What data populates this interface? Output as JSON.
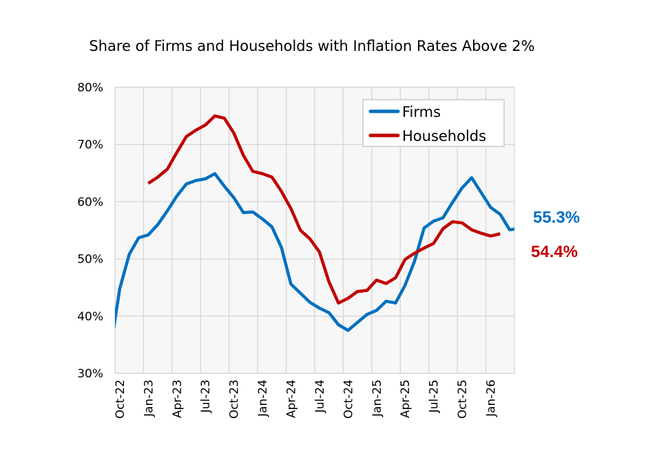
{
  "chart_data": {
    "type": "line",
    "title": "Share of Firms and Households with Inflation Rates Above 2%",
    "xlabel": "",
    "ylabel": "",
    "ylim": [
      30,
      80
    ],
    "y_ticks": [
      "30%",
      "40%",
      "50%",
      "60%",
      "70%",
      "80%"
    ],
    "y_tick_values": [
      30,
      40,
      50,
      60,
      70,
      80
    ],
    "x_tick_labels": [
      "Oct-22",
      "Jan-23",
      "Apr-23",
      "Jul-23",
      "Oct-23",
      "Jan-24",
      "Apr-24",
      "Jul-24",
      "Oct-24",
      "Jan-25",
      "Apr-25",
      "Jul-25",
      "Oct-25",
      "Jan-26"
    ],
    "grid": true,
    "legend_position": "top-right",
    "x": [
      "Sep-22",
      "Oct-22",
      "Nov-22",
      "Dec-22",
      "Jan-23",
      "Feb-23",
      "Mar-23",
      "Apr-23",
      "May-23",
      "Jun-23",
      "Jul-23",
      "Aug-23",
      "Sep-23",
      "Oct-23",
      "Nov-23",
      "Dec-23",
      "Jan-24",
      "Feb-24",
      "Mar-24",
      "Apr-24",
      "May-24",
      "Jun-24",
      "Jul-24",
      "Aug-24",
      "Sep-24",
      "Oct-24",
      "Nov-24",
      "Dec-24",
      "Jan-25",
      "Feb-25",
      "Mar-25",
      "Apr-25",
      "May-25",
      "Jun-25",
      "Jul-25",
      "Aug-25",
      "Sep-25",
      "Oct-25",
      "Nov-25",
      "Dec-25",
      "Jan-26",
      "Feb-26",
      "Mar-26",
      "Apr-26"
    ],
    "series": [
      {
        "name": "Firms",
        "color": "#0070C0",
        "values": [
          34.0,
          44.8,
          50.8,
          53.7,
          54.2,
          56.0,
          58.4,
          61.0,
          63.1,
          63.7,
          64.0,
          64.9,
          62.7,
          60.7,
          58.1,
          58.2,
          57.0,
          55.6,
          52.0,
          45.6,
          44.0,
          42.4,
          41.4,
          40.6,
          38.5,
          37.5,
          38.9,
          40.3,
          41.0,
          42.6,
          42.3,
          45.4,
          49.6,
          55.4,
          56.6,
          57.2,
          59.9,
          62.4,
          64.2,
          61.6,
          59.0,
          57.8,
          55.1,
          55.3
        ],
        "end_label": "55.3%"
      },
      {
        "name": "Households",
        "color": "#C00000",
        "values": [
          null,
          null,
          null,
          null,
          63.2,
          64.3,
          65.7,
          68.6,
          71.4,
          72.5,
          73.4,
          75.0,
          74.6,
          72.0,
          68.1,
          65.3,
          64.9,
          64.3,
          61.8,
          58.8,
          55.0,
          53.5,
          51.2,
          46.0,
          42.3,
          43.1,
          44.3,
          44.5,
          46.3,
          45.7,
          46.7,
          49.9,
          51.0,
          51.9,
          52.7,
          55.3,
          56.5,
          56.3,
          55.1,
          54.5,
          54.0,
          54.4,
          null,
          null
        ],
        "end_label": "54.4%"
      }
    ]
  }
}
